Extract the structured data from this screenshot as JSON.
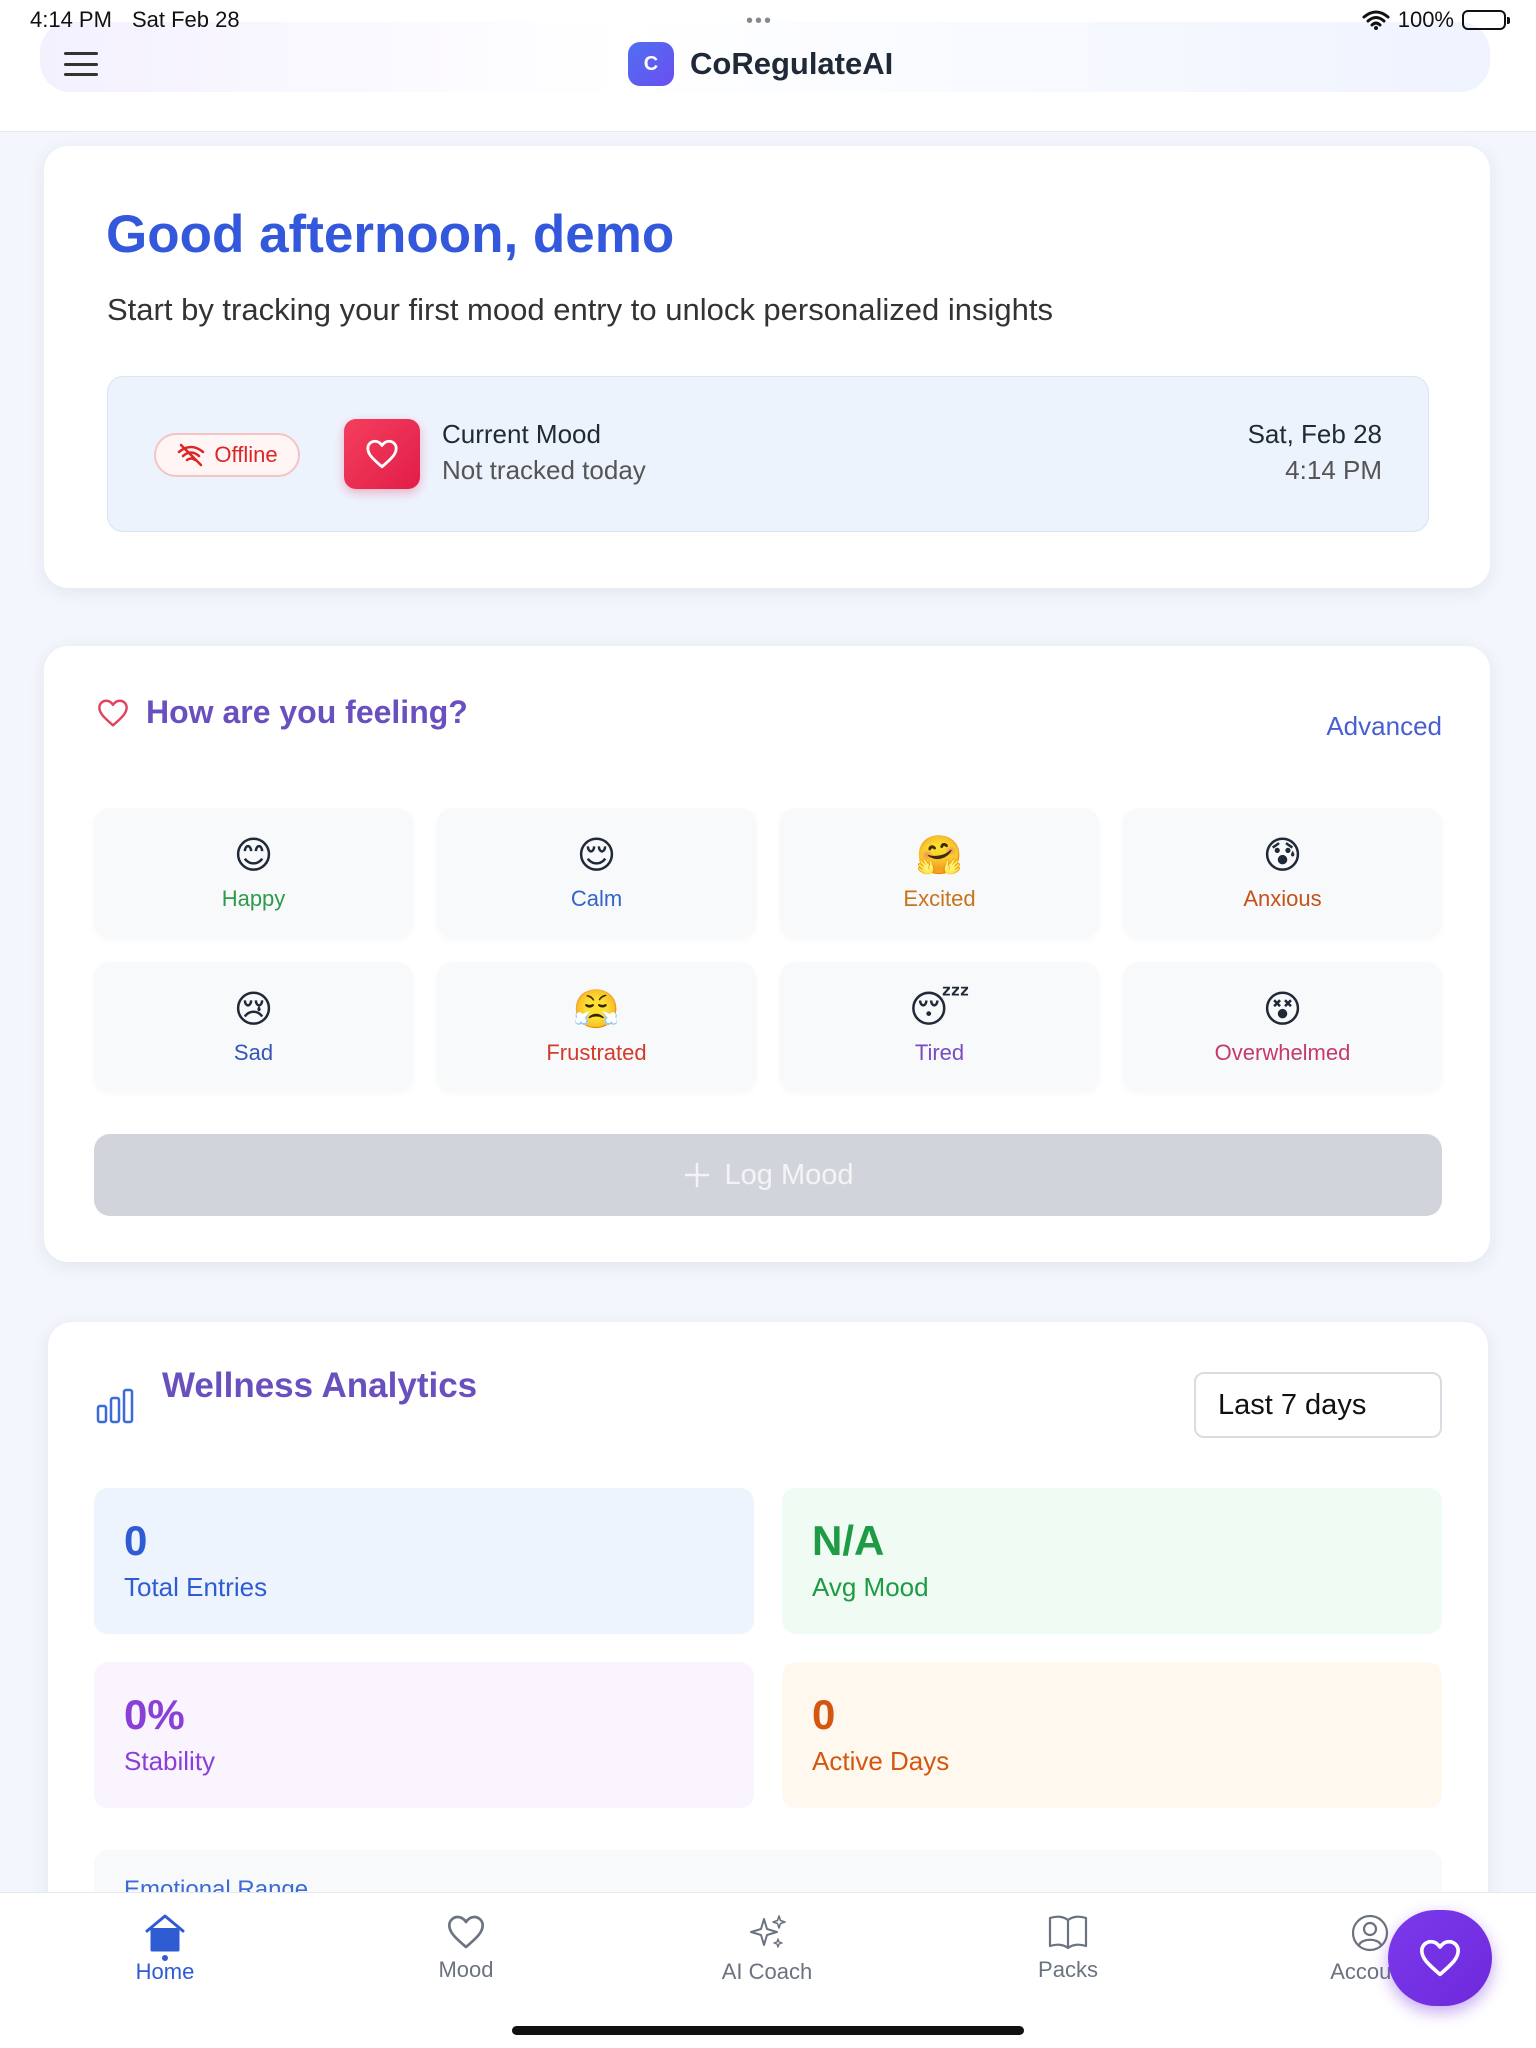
{
  "status_bar": {
    "time": "4:14 PM",
    "date": "Sat Feb 28",
    "battery": "100%"
  },
  "header": {
    "logo_letter": "C",
    "app_name": "CoRegulateAI"
  },
  "welcome": {
    "greeting": "Good afternoon, demo",
    "subtitle": "Start by tracking your first mood entry to unlock personalized insights",
    "offline_label": "Offline",
    "current_mood_label": "Current Mood",
    "current_mood_value": "Not tracked today",
    "date": "Sat, Feb 28",
    "time": "4:14 PM"
  },
  "feeling": {
    "title": "How are you feeling?",
    "advanced": "Advanced",
    "moods": [
      {
        "name": "Happy",
        "emoji": "😊",
        "color": "#2e9a4c"
      },
      {
        "name": "Calm",
        "emoji": "😌",
        "color": "#3563c9"
      },
      {
        "name": "Excited",
        "emoji": "🤗",
        "color": "#c7741a"
      },
      {
        "name": "Anxious",
        "emoji": "😰",
        "color": "#c4521a"
      },
      {
        "name": "Sad",
        "emoji": "😢",
        "color": "#3456b8"
      },
      {
        "name": "Frustrated",
        "emoji": "😤",
        "color": "#d23a2a"
      },
      {
        "name": "Tired",
        "emoji": "😴",
        "color": "#7b4bc4"
      },
      {
        "name": "Overwhelmed",
        "emoji": "😵",
        "color": "#c63a6b"
      }
    ],
    "log_button": "Log Mood"
  },
  "analytics": {
    "title": "Wellness Analytics",
    "range": "Last 7 days",
    "stats": [
      {
        "value": "0",
        "label": "Total Entries",
        "color": "#2f5bd3"
      },
      {
        "value": "N/A",
        "label": "Avg Mood",
        "color": "#1f9a45"
      },
      {
        "value": "0%",
        "label": "Stability",
        "color": "#8a3fd6"
      },
      {
        "value": "0",
        "label": "Active Days",
        "color": "#d4570f"
      }
    ],
    "emotional_range": "Emotional Range"
  },
  "nav": [
    {
      "label": "Home",
      "icon": "home-icon"
    },
    {
      "label": "Mood",
      "icon": "heart-icon"
    },
    {
      "label": "AI Coach",
      "icon": "sparkles-icon"
    },
    {
      "label": "Packs",
      "icon": "book-icon"
    },
    {
      "label": "Account",
      "icon": "user-circle-icon"
    }
  ]
}
